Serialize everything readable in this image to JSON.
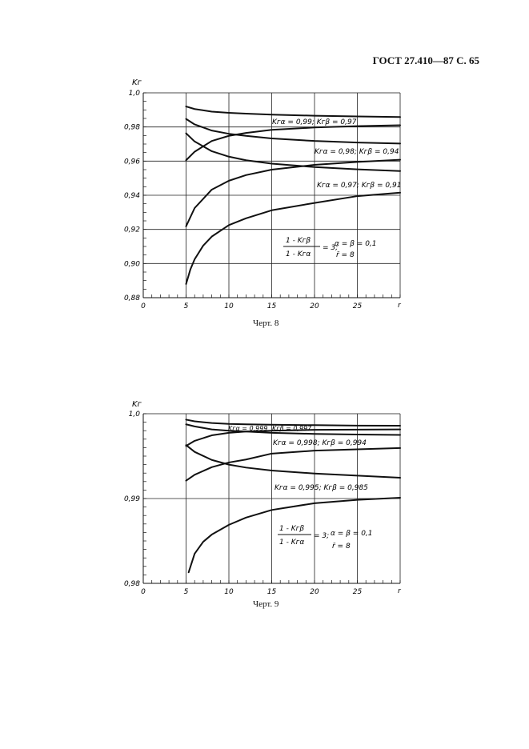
{
  "header": {
    "text": "ГОСТ 27.410—87 С. 65"
  },
  "charts": [
    {
      "caption": "Черт. 8",
      "chart_data": {
        "type": "line",
        "ylabel": "Kг",
        "xlabel": "r",
        "xlim": [
          0,
          30
        ],
        "ylim": [
          0.88,
          1.0
        ],
        "x_ticks": [
          "0",
          "5",
          "10",
          "15",
          "20",
          "25"
        ],
        "y_ticks": [
          "0,88",
          "0,90",
          "0,92",
          "0,94",
          "0,96",
          "0,98",
          "1,0"
        ],
        "grid": "partial",
        "annotations": [
          "Kгα = 0,99; Kгβ = 0,97",
          "Kгα = 0,98; Kгβ = 0,94",
          "Kгα = 0,97; Kгβ = 0,91"
        ],
        "formula": {
          "numerator": "1 - Kгβ",
          "denominator": "1 - Kгα",
          "rhs": "= 3;",
          "note1": "α = β = 0,1",
          "note2": "r̄ = 8"
        },
        "series": [
          {
            "x": [
              5,
              6,
              8,
              10,
              12,
              15,
              20,
              25,
              30
            ],
            "y": [
              0.992,
              0.9905,
              0.989,
              0.9883,
              0.9878,
              0.9872,
              0.9866,
              0.9862,
              0.9858
            ]
          },
          {
            "x": [
              5,
              6,
              8,
              10,
              12,
              15,
              20,
              25,
              30
            ],
            "y": [
              0.9605,
              0.9655,
              0.9718,
              0.9748,
              0.9765,
              0.9783,
              0.9797,
              0.9805,
              0.981
            ]
          },
          {
            "x": [
              5,
              6,
              8,
              10,
              12,
              15,
              20,
              25,
              30
            ],
            "y": [
              0.9847,
              0.9815,
              0.9779,
              0.976,
              0.9748,
              0.9733,
              0.9718,
              0.9709,
              0.9703
            ]
          },
          {
            "x": [
              5,
              6,
              8,
              10,
              12,
              15,
              20,
              25,
              30
            ],
            "y": [
              0.9218,
              0.9325,
              0.9433,
              0.9485,
              0.9518,
              0.955,
              0.9578,
              0.9595,
              0.9608
            ]
          },
          {
            "x": [
              5,
              6,
              8,
              10,
              12,
              15,
              20,
              25,
              30
            ],
            "y": [
              0.9763,
              0.9715,
              0.9658,
              0.9626,
              0.9605,
              0.9585,
              0.9565,
              0.9552,
              0.9542
            ]
          },
          {
            "x": [
              5,
              5.5,
              6,
              7,
              8,
              10,
              12,
              15,
              20,
              25,
              30
            ],
            "y": [
              0.888,
              0.8965,
              0.9025,
              0.9105,
              0.9158,
              0.9225,
              0.9265,
              0.9312,
              0.9355,
              0.9395,
              0.9415
            ]
          }
        ]
      }
    },
    {
      "caption": "Черт. 9",
      "chart_data": {
        "type": "line",
        "ylabel": "Kг",
        "xlabel": "r",
        "xlim": [
          0,
          30
        ],
        "ylim": [
          0.98,
          1.0
        ],
        "x_ticks": [
          "0",
          "5",
          "10",
          "15",
          "20",
          "25"
        ],
        "y_ticks": [
          "0,98",
          "0,99",
          "1,0"
        ],
        "grid": "partial",
        "annotations": [
          "Kгα = 0,999",
          "Kгβ = 0,997",
          "Kгα = 0,998; Kгβ = 0,994",
          "Kгα = 0,995; Kгβ = 0,985"
        ],
        "formula": {
          "numerator": "1 - Kгβ",
          "denominator": "1 - Kгα",
          "rhs": "= 3;",
          "note1": "α = β = 0,1",
          "note2": "r̄ = 8"
        },
        "series": [
          {
            "x": [
              5,
              6,
              8,
              10,
              12,
              15,
              20,
              25,
              30
            ],
            "y": [
              0.9993,
              0.9991,
              0.9989,
              0.9988,
              0.99875,
              0.9987,
              0.99865,
              0.9986,
              0.99858
            ]
          },
          {
            "x": [
              5,
              6,
              8,
              10,
              12,
              15,
              20,
              25,
              30
            ],
            "y": [
              0.9962,
              0.9968,
              0.99745,
              0.99775,
              0.9979,
              0.998,
              0.9981,
              0.99812,
              0.99815
            ]
          },
          {
            "x": [
              5,
              6,
              8,
              10,
              12,
              15,
              20,
              25,
              30
            ],
            "y": [
              0.99875,
              0.9985,
              0.99815,
              0.998,
              0.9979,
              0.99775,
              0.99762,
              0.99755,
              0.9975
            ]
          },
          {
            "x": [
              5,
              6,
              8,
              10,
              12,
              15,
              20,
              25,
              30
            ],
            "y": [
              0.9921,
              0.9928,
              0.9937,
              0.99425,
              0.9946,
              0.9953,
              0.99565,
              0.9958,
              0.99595
            ]
          },
          {
            "x": [
              5,
              6,
              8,
              10,
              12,
              15,
              20,
              25,
              30
            ],
            "y": [
              0.9963,
              0.9955,
              0.99455,
              0.994,
              0.99365,
              0.9933,
              0.99295,
              0.9927,
              0.99245
            ]
          },
          {
            "x": [
              5.3,
              6,
              7,
              8,
              10,
              12,
              15,
              20,
              25,
              30
            ],
            "y": [
              0.9813,
              0.9835,
              0.9849,
              0.98575,
              0.9869,
              0.98775,
              0.98865,
              0.98945,
              0.98985,
              0.9901
            ]
          }
        ]
      }
    }
  ]
}
